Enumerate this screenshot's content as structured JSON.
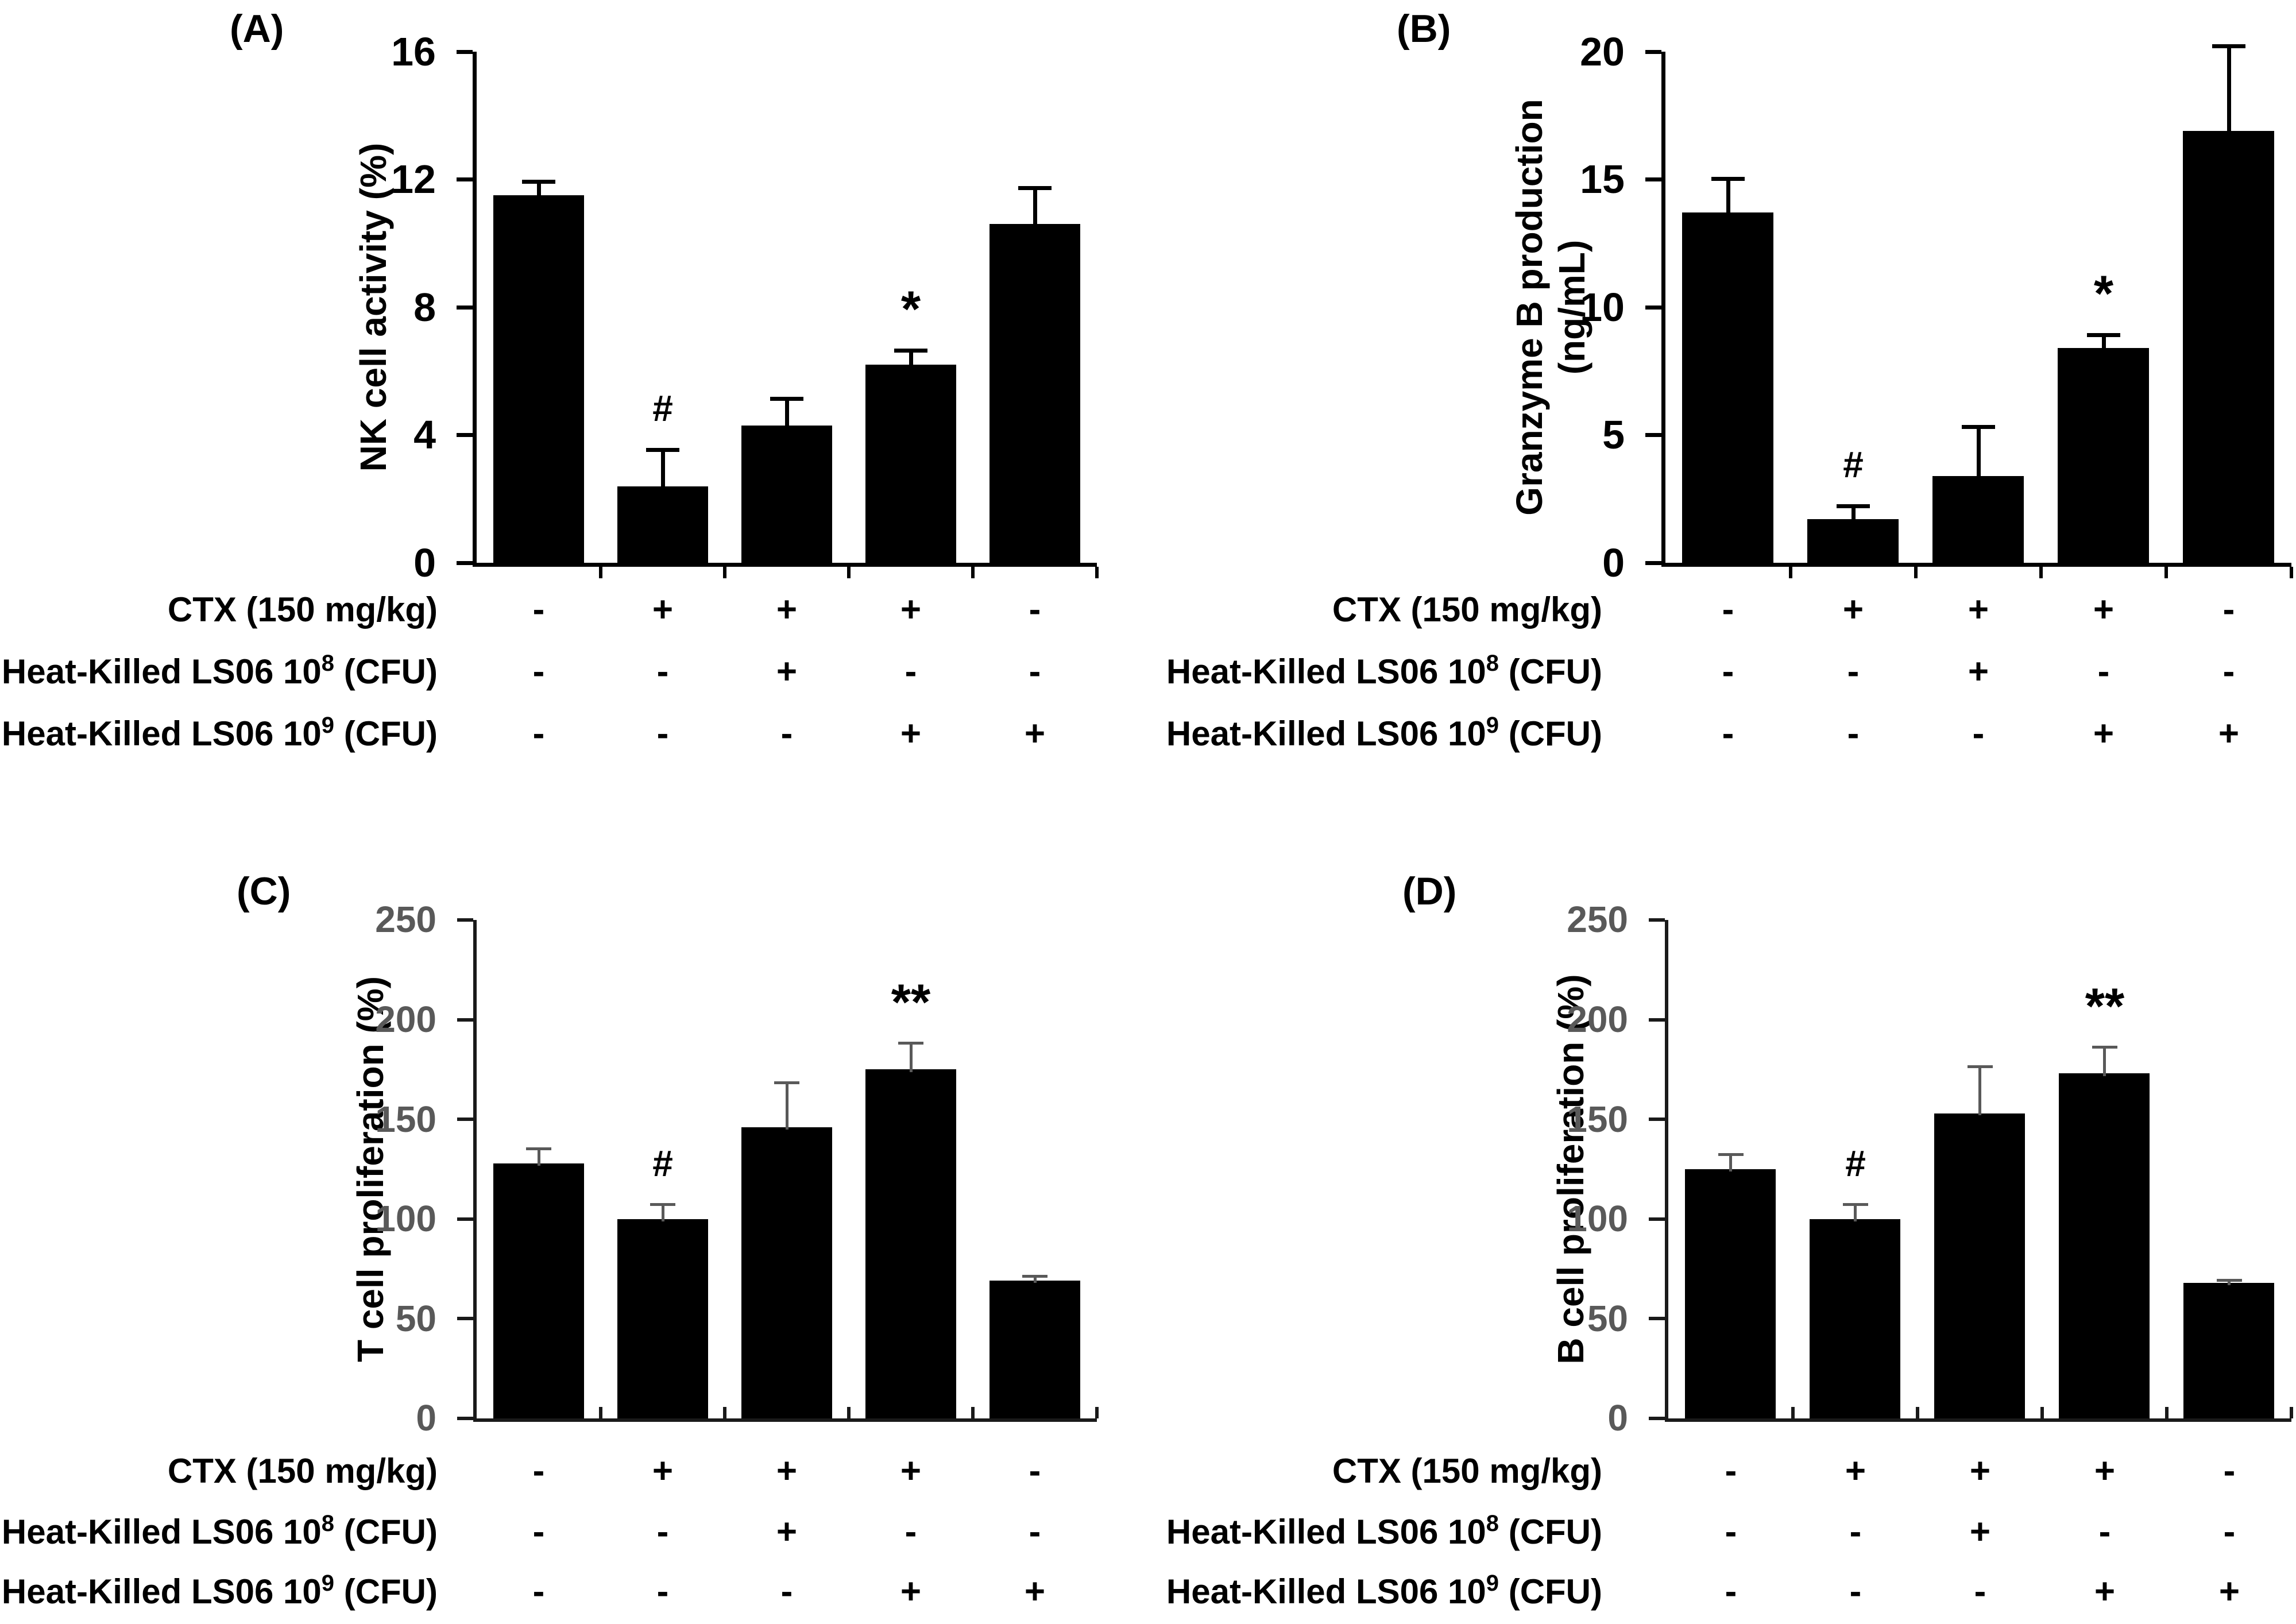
{
  "figure": {
    "background": "#ffffff",
    "bar_color": "#000000",
    "axis_color_top_panels": "#000000",
    "axis_color_bottom_panels": "#1a1a1a",
    "tick_label_color_top_panels": "#000000",
    "tick_label_color_bottom_panels": "#595959",
    "error_bar_color_top_panels": "#000000",
    "error_bar_color_bottom_panels": "#595959",
    "condition_rows": [
      {
        "label_pre": "CTX (150 mg/kg)",
        "label_sup": "",
        "label_post": "",
        "values": [
          "-",
          "+",
          "+",
          "+",
          "-"
        ]
      },
      {
        "label_pre": "Heat-Killed LS06 10",
        "label_sup": "8",
        "label_post": " (CFU)",
        "values": [
          "-",
          "-",
          "+",
          "-",
          "-"
        ]
      },
      {
        "label_pre": "Heat-Killed LS06 10",
        "label_sup": "9",
        "label_post": " (CFU)",
        "values": [
          "-",
          "-",
          "-",
          "+",
          "+"
        ]
      }
    ]
  },
  "chart_data": [
    {
      "type": "bar",
      "panel_label": "(A)",
      "ylabel": "NK cell activity (%)",
      "ylabel_lines": [
        "NK cell activity (%)"
      ],
      "ylim": [
        0,
        16
      ],
      "yticks": [
        0,
        4,
        8,
        12,
        16
      ],
      "categories": [
        "- - -",
        "+ - -",
        "+ + -",
        "+ - +",
        "- - +"
      ],
      "category_legend": [
        "CTX (150 mg/kg)",
        "Heat-Killed LS06 10^8 (CFU)",
        "Heat-Killed LS06 10^9 (CFU)"
      ],
      "values": [
        11.5,
        2.4,
        4.3,
        6.2,
        10.6
      ],
      "errors": [
        0.5,
        1.2,
        0.9,
        0.5,
        1.2
      ],
      "significance": [
        "",
        "#",
        "",
        "*",
        ""
      ],
      "grid": false,
      "legend": "none"
    },
    {
      "type": "bar",
      "panel_label": "(B)",
      "ylabel": "Granzyme B production (ng/mL)",
      "ylabel_lines": [
        "Granzyme B production",
        "(ng/mL)"
      ],
      "ylim": [
        0,
        20
      ],
      "yticks": [
        0,
        5,
        10,
        15,
        20
      ],
      "categories": [
        "- - -",
        "+ - -",
        "+ + -",
        "+ - +",
        "- - +"
      ],
      "category_legend": [
        "CTX (150 mg/kg)",
        "Heat-Killed LS06 10^8 (CFU)",
        "Heat-Killed LS06 10^9 (CFU)"
      ],
      "values": [
        13.7,
        1.7,
        3.4,
        8.4,
        16.9
      ],
      "errors": [
        1.4,
        0.6,
        2.0,
        0.6,
        3.4
      ],
      "significance": [
        "",
        "#",
        "",
        "*",
        ""
      ],
      "grid": false,
      "legend": "none"
    },
    {
      "type": "bar",
      "panel_label": "(C)",
      "ylabel": "T cell proliferation (%)",
      "ylabel_lines": [
        "T cell proliferation (%)"
      ],
      "ylim": [
        0,
        250
      ],
      "yticks": [
        0,
        50,
        100,
        150,
        200,
        250
      ],
      "categories": [
        "- - -",
        "+ - -",
        "+ + -",
        "+ - +",
        "- - +"
      ],
      "category_legend": [
        "CTX (150 mg/kg)",
        "Heat-Killed LS06 10^8 (CFU)",
        "Heat-Killed LS06 10^9 (CFU)"
      ],
      "values": [
        128,
        100,
        146,
        175,
        69
      ],
      "errors": [
        8,
        8,
        23,
        14,
        3
      ],
      "significance": [
        "",
        "#",
        "",
        "**",
        ""
      ],
      "grid": false,
      "legend": "none"
    },
    {
      "type": "bar",
      "panel_label": "(D)",
      "ylabel": "B cell proliferation (%)",
      "ylabel_lines": [
        "B cell proliferation (%)"
      ],
      "ylim": [
        0,
        250
      ],
      "yticks": [
        0,
        50,
        100,
        150,
        200,
        250
      ],
      "categories": [
        "- - -",
        "+ - -",
        "+ + -",
        "+ - +",
        "- - +"
      ],
      "category_legend": [
        "CTX (150 mg/kg)",
        "Heat-Killed LS06 10^8 (CFU)",
        "Heat-Killed LS06 10^9 (CFU)"
      ],
      "values": [
        125,
        100,
        153,
        173,
        68
      ],
      "errors": [
        8,
        8,
        24,
        14,
        2
      ],
      "significance": [
        "",
        "#",
        "",
        "**",
        ""
      ],
      "grid": false,
      "legend": "none"
    }
  ]
}
